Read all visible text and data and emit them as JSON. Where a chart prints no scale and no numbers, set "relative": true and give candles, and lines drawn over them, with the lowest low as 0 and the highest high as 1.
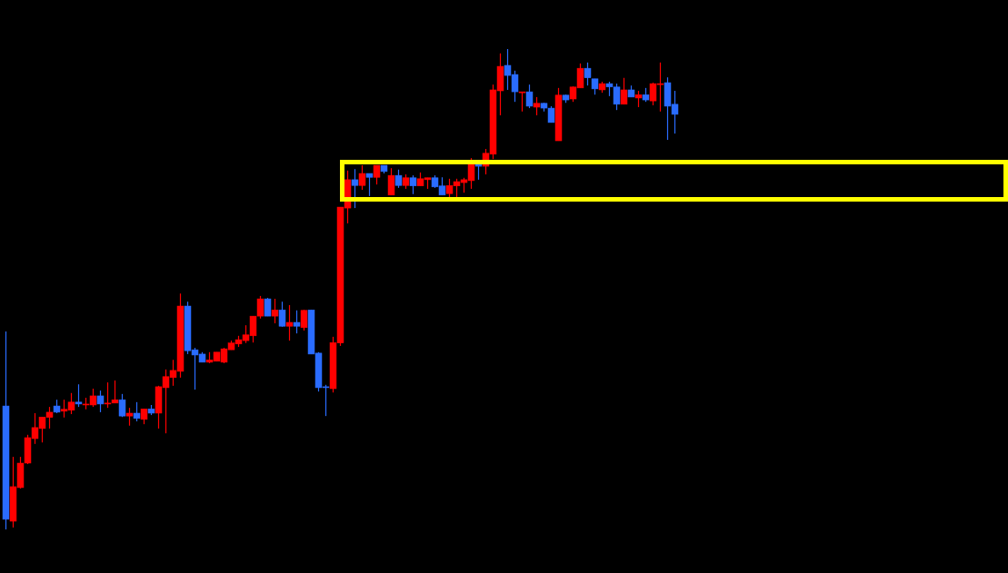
{
  "chart_data": {
    "type": "candlestick",
    "relative": true,
    "ohlc": [
      [
        0.257,
        0.412,
        0,
        0.021
      ],
      [
        0.017,
        0.151,
        0.004,
        0.089
      ],
      [
        0.087,
        0.151,
        0.085,
        0.138
      ],
      [
        0.138,
        0.197,
        0.136,
        0.191
      ],
      [
        0.189,
        0.242,
        0.178,
        0.212
      ],
      [
        0.21,
        0.234,
        0.181,
        0.234
      ],
      [
        0.233,
        0.255,
        0.21,
        0.244
      ],
      [
        0.257,
        0.27,
        0.242,
        0.244
      ],
      [
        0.246,
        0.27,
        0.233,
        0.25
      ],
      [
        0.248,
        0.284,
        0.24,
        0.265
      ],
      [
        0.265,
        0.302,
        0.255,
        0.261
      ],
      [
        0.259,
        0.274,
        0.25,
        0.261
      ],
      [
        0.259,
        0.293,
        0.255,
        0.278
      ],
      [
        0.278,
        0.289,
        0.244,
        0.261
      ],
      [
        0.261,
        0.306,
        0.253,
        0.263
      ],
      [
        0.263,
        0.31,
        0.263,
        0.27
      ],
      [
        0.27,
        0.282,
        0.234,
        0.236
      ],
      [
        0.236,
        0.253,
        0.216,
        0.242
      ],
      [
        0.242,
        0.265,
        0.225,
        0.231
      ],
      [
        0.229,
        0.251,
        0.219,
        0.251
      ],
      [
        0.251,
        0.259,
        0.238,
        0.242
      ],
      [
        0.242,
        0.299,
        0.21,
        0.297
      ],
      [
        0.295,
        0.333,
        0.2,
        0.318
      ],
      [
        0.316,
        0.353,
        0.299,
        0.331
      ],
      [
        0.329,
        0.491,
        0.316,
        0.465
      ],
      [
        0.465,
        0.474,
        0.365,
        0.372
      ],
      [
        0.374,
        0.378,
        0.291,
        0.363
      ],
      [
        0.365,
        0.369,
        0.348,
        0.348
      ],
      [
        0.348,
        0.369,
        0.346,
        0.353
      ],
      [
        0.35,
        0.369,
        0.35,
        0.369
      ],
      [
        0.348,
        0.378,
        0.346,
        0.376
      ],
      [
        0.374,
        0.393,
        0.374,
        0.388
      ],
      [
        0.386,
        0.403,
        0.38,
        0.395
      ],
      [
        0.393,
        0.425,
        0.388,
        0.405
      ],
      [
        0.403,
        0.444,
        0.389,
        0.444
      ],
      [
        0.444,
        0.486,
        0.439,
        0.48
      ],
      [
        0.48,
        0.482,
        0.444,
        0.444
      ],
      [
        0.444,
        0.48,
        0.429,
        0.457
      ],
      [
        0.457,
        0.474,
        0.422,
        0.423
      ],
      [
        0.423,
        0.467,
        0.393,
        0.431
      ],
      [
        0.431,
        0.456,
        0.408,
        0.423
      ],
      [
        0.42,
        0.457,
        0.414,
        0.456
      ],
      [
        0.457,
        0.457,
        0.365,
        0.365
      ],
      [
        0.367,
        0.369,
        0.287,
        0.295
      ],
      [
        0.297,
        0.301,
        0.236,
        0.295
      ],
      [
        0.293,
        0.401,
        0.285,
        0.389
      ],
      [
        0.388,
        0.671,
        0.382,
        0.671
      ],
      [
        0.669,
        0.747,
        0.637,
        0.728
      ],
      [
        0.728,
        0.75,
        0.669,
        0.716
      ],
      [
        0.716,
        0.758,
        0.707,
        0.741
      ],
      [
        0.741,
        0.741,
        0.694,
        0.733
      ],
      [
        0.733,
        0.758,
        0.718,
        0.758
      ],
      [
        0.758,
        0.758,
        0.741,
        0.745
      ],
      [
        0.696,
        0.752,
        0.696,
        0.737
      ],
      [
        0.737,
        0.749,
        0.711,
        0.716
      ],
      [
        0.716,
        0.739,
        0.709,
        0.732
      ],
      [
        0.732,
        0.737,
        0.698,
        0.715
      ],
      [
        0.715,
        0.743,
        0.715,
        0.73
      ],
      [
        0.728,
        0.732,
        0.709,
        0.732
      ],
      [
        0.732,
        0.737,
        0.711,
        0.713
      ],
      [
        0.715,
        0.733,
        0.696,
        0.696
      ],
      [
        0.699,
        0.73,
        0.692,
        0.716
      ],
      [
        0.715,
        0.73,
        0.692,
        0.724
      ],
      [
        0.722,
        0.732,
        0.701,
        0.728
      ],
      [
        0.726,
        0.773,
        0.709,
        0.762
      ],
      [
        0.762,
        0.762,
        0.728,
        0.756
      ],
      [
        0.756,
        0.792,
        0.739,
        0.783
      ],
      [
        0.781,
        0.926,
        0.771,
        0.915
      ],
      [
        0.913,
        0.991,
        0.862,
        0.964
      ],
      [
        0.966,
        1,
        0.915,
        0.945
      ],
      [
        0.947,
        0.955,
        0.89,
        0.911
      ],
      [
        0.909,
        0.911,
        0.87,
        0.911
      ],
      [
        0.911,
        0.926,
        0.877,
        0.881
      ],
      [
        0.879,
        0.9,
        0.862,
        0.887
      ],
      [
        0.887,
        0.888,
        0.87,
        0.877
      ],
      [
        0.877,
        0.881,
        0.847,
        0.847
      ],
      [
        0.809,
        0.919,
        0.809,
        0.904
      ],
      [
        0.904,
        0.905,
        0.888,
        0.894
      ],
      [
        0.896,
        0.922,
        0.89,
        0.921
      ],
      [
        0.919,
        0.97,
        0.919,
        0.96
      ],
      [
        0.96,
        0.972,
        0.924,
        0.94
      ],
      [
        0.938,
        0.938,
        0.905,
        0.917
      ],
      [
        0.915,
        0.932,
        0.909,
        0.928
      ],
      [
        0.928,
        0.932,
        0.902,
        0.921
      ],
      [
        0.921,
        0.928,
        0.873,
        0.885
      ],
      [
        0.885,
        0.94,
        0.885,
        0.915
      ],
      [
        0.915,
        0.924,
        0.9,
        0.9
      ],
      [
        0.898,
        0.913,
        0.879,
        0.905
      ],
      [
        0.905,
        0.919,
        0.89,
        0.894
      ],
      [
        0.892,
        0.93,
        0.883,
        0.928
      ],
      [
        0.926,
        0.972,
        0.87,
        0.928
      ],
      [
        0.93,
        0.941,
        0.811,
        0.881
      ],
      [
        0.885,
        0.913,
        0.824,
        0.864
      ]
    ],
    "colors": [
      "#2a6cff",
      "#ff0000",
      "#ff0000",
      "#ff0000",
      "#ff0000",
      "#ff0000",
      "#ff0000",
      "#2a6cff",
      "#ff0000",
      "#ff0000",
      "#2a6cff",
      "#ff0000",
      "#ff0000",
      "#2a6cff",
      "#ff0000",
      "#ff0000",
      "#2a6cff",
      "#ff0000",
      "#2a6cff",
      "#ff0000",
      "#2a6cff",
      "#ff0000",
      "#ff0000",
      "#ff0000",
      "#ff0000",
      "#2a6cff",
      "#2a6cff",
      "#2a6cff",
      "#ff0000",
      "#ff0000",
      "#ff0000",
      "#ff0000",
      "#ff0000",
      "#ff0000",
      "#ff0000",
      "#ff0000",
      "#2a6cff",
      "#ff0000",
      "#2a6cff",
      "#ff0000",
      "#2a6cff",
      "#ff0000",
      "#2a6cff",
      "#2a6cff",
      "#2a6cff",
      "#ff0000",
      "#ff0000",
      "#ff0000",
      "#2a6cff",
      "#ff0000",
      "#2a6cff",
      "#ff0000",
      "#2a6cff",
      "#ff0000",
      "#2a6cff",
      "#ff0000",
      "#2a6cff",
      "#ff0000",
      "#ff0000",
      "#2a6cff",
      "#2a6cff",
      "#ff0000",
      "#ff0000",
      "#ff0000",
      "#ff0000",
      "#2a6cff",
      "#ff0000",
      "#ff0000",
      "#ff0000",
      "#2a6cff",
      "#2a6cff",
      "#ff0000",
      "#2a6cff",
      "#ff0000",
      "#2a6cff",
      "#2a6cff",
      "#ff0000",
      "#2a6cff",
      "#ff0000",
      "#ff0000",
      "#2a6cff",
      "#2a6cff",
      "#ff0000",
      "#2a6cff",
      "#2a6cff",
      "#ff0000",
      "#2a6cff",
      "#ff0000",
      "#2a6cff",
      "#ff0000",
      "#ff0000",
      "#2a6cff",
      "#2a6cff"
    ]
  }
}
